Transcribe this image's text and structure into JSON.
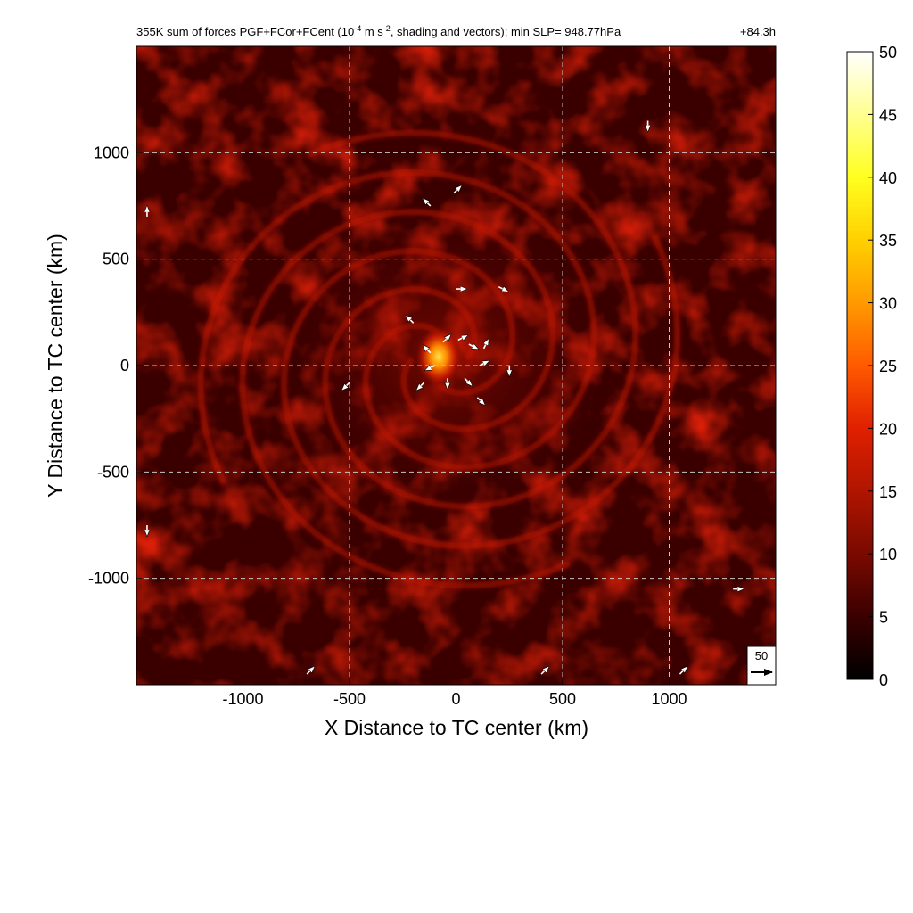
{
  "chart_data": {
    "type": "heatmap",
    "title": {
      "main": "355K sum of forces PGF+FCor+FCent (10",
      "sup1": "-4",
      "mid": " m s",
      "sup2": "-2",
      "tail": ", shading and vectors); min SLP= 948.77hPa",
      "time": "+84.3h"
    },
    "xlabel": "X Distance to TC center (km)",
    "ylabel": "Y Distance to TC center (km)",
    "xlim": [
      -1500,
      1500
    ],
    "ylim": [
      -1500,
      1500
    ],
    "x_ticks": [
      -1000,
      -500,
      0,
      500,
      1000
    ],
    "y_ticks": [
      -1000,
      -500,
      0,
      500,
      1000
    ],
    "grid": "dashed",
    "colorbar": {
      "min": 0,
      "max": 50,
      "ticks": [
        0,
        5,
        10,
        15,
        20,
        25,
        30,
        35,
        40,
        45,
        50
      ],
      "colormap": [
        "#000000",
        "#3a0000",
        "#7a0a00",
        "#b01500",
        "#e02000",
        "#ff5a00",
        "#ff9a00",
        "#ffd000",
        "#ffff20",
        "#ffff90",
        "#ffffff"
      ],
      "placement": "right"
    },
    "background_level": 5,
    "core": {
      "x": -80,
      "y": 30,
      "peak": 35
    },
    "reference_vector": {
      "label": "50",
      "magnitude": 50
    },
    "vectors": [
      {
        "x": -60,
        "y": 110,
        "u": 1,
        "v": 1
      },
      {
        "x": 10,
        "y": 120,
        "u": 1,
        "v": 0.5
      },
      {
        "x": 60,
        "y": 100,
        "u": 1,
        "v": -0.5
      },
      {
        "x": -120,
        "y": 60,
        "u": -1,
        "v": 1
      },
      {
        "x": -100,
        "y": 0,
        "u": -1,
        "v": -0.5
      },
      {
        "x": -40,
        "y": -60,
        "u": 0,
        "v": -1
      },
      {
        "x": 40,
        "y": -60,
        "u": 1,
        "v": -1
      },
      {
        "x": 110,
        "y": 0,
        "u": 1,
        "v": 0.5
      },
      {
        "x": 130,
        "y": 80,
        "u": 0.5,
        "v": 1
      },
      {
        "x": -200,
        "y": 200,
        "u": -1,
        "v": 1
      },
      {
        "x": 0,
        "y": 360,
        "u": 1,
        "v": 0
      },
      {
        "x": 200,
        "y": 370,
        "u": 1,
        "v": -0.5
      },
      {
        "x": 250,
        "y": 0,
        "u": 0,
        "v": -1
      },
      {
        "x": 100,
        "y": -150,
        "u": 1,
        "v": -1
      },
      {
        "x": -150,
        "y": -80,
        "u": -1,
        "v": -1
      },
      {
        "x": -500,
        "y": -80,
        "u": -1,
        "v": -1
      },
      {
        "x": -10,
        "y": 810,
        "u": 1,
        "v": 1
      },
      {
        "x": -120,
        "y": 750,
        "u": -1,
        "v": 1
      },
      {
        "x": -1450,
        "y": 700,
        "u": 0,
        "v": 1
      },
      {
        "x": -1450,
        "y": -750,
        "u": 0,
        "v": -1
      },
      {
        "x": 400,
        "y": -1450,
        "u": 1,
        "v": 1
      },
      {
        "x": 1050,
        "y": -1450,
        "u": 1,
        "v": 1
      },
      {
        "x": -700,
        "y": -1450,
        "u": 1,
        "v": 1
      },
      {
        "x": 900,
        "y": 1150,
        "u": 0,
        "v": -1
      },
      {
        "x": 1300,
        "y": -1050,
        "u": 1,
        "v": 0
      }
    ]
  }
}
